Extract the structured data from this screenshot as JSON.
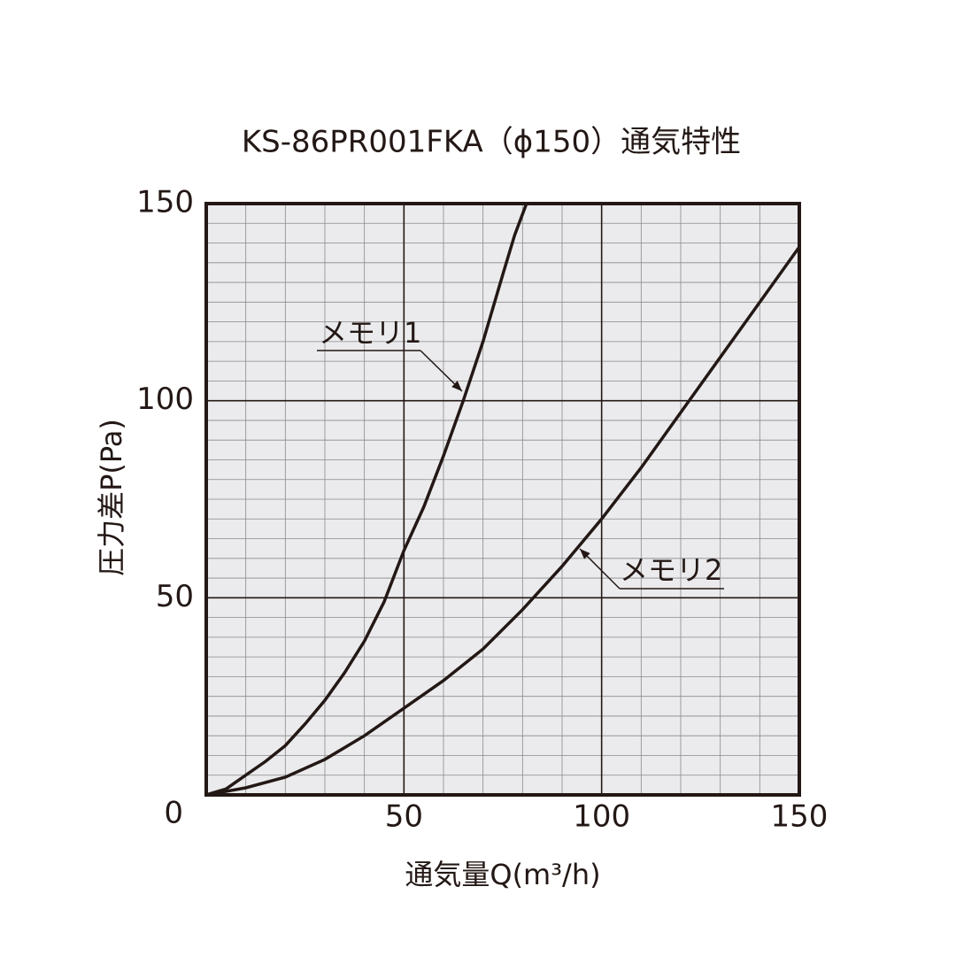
{
  "chart_data": {
    "type": "line",
    "title": "KS-86PR001FKA（ϕ150）通気特性",
    "x_label": "通気量Q(m³/h)",
    "y_label": "圧力差P(Pa)",
    "xlim": [
      0,
      150
    ],
    "ylim": [
      0,
      150
    ],
    "xticks": [
      0,
      50,
      100,
      150
    ],
    "yticks": [
      0,
      50,
      100,
      150
    ],
    "minor_grid": {
      "x": 10,
      "y": 5
    },
    "grid": true,
    "series": [
      {
        "name": "メモリ1",
        "color": "#231815",
        "x": [
          0,
          5,
          10,
          15,
          20,
          25,
          30,
          35,
          40,
          45,
          50,
          55,
          60,
          65,
          70,
          75,
          78,
          81
        ],
        "values": [
          0,
          1.5,
          5,
          8.5,
          12.5,
          18,
          24,
          31,
          39,
          49,
          62,
          73,
          86,
          100,
          115,
          132,
          142,
          150
        ]
      },
      {
        "name": "メモリ2",
        "color": "#231815",
        "x": [
          0,
          10,
          20,
          30,
          40,
          50,
          60,
          70,
          80,
          90,
          100,
          110,
          120,
          130,
          140,
          150
        ],
        "values": [
          0,
          1.8,
          4.5,
          9,
          15,
          22,
          29,
          37,
          47,
          58,
          70,
          83,
          97,
          111,
          125,
          139
        ]
      }
    ]
  }
}
